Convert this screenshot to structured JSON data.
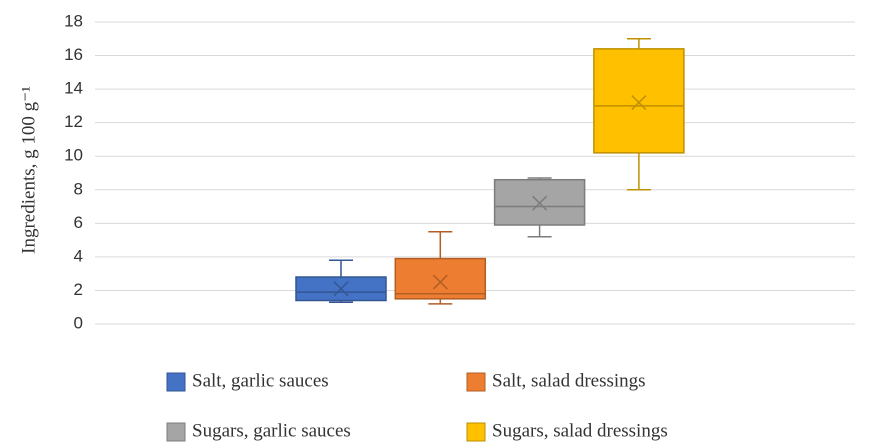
{
  "chart_data": {
    "type": "box",
    "y_label": "Ingredients, g 100 g⁻¹",
    "ylim": [
      0,
      18
    ],
    "yticks": [
      0,
      2,
      4,
      6,
      8,
      10,
      12,
      14,
      16,
      18
    ],
    "grid": true,
    "series": [
      {
        "name": "Salt, garlic sauces",
        "color": "#4472c4",
        "min": 1.3,
        "q1": 1.4,
        "median": 1.9,
        "q3": 2.8,
        "max": 3.8,
        "mean": 2.1
      },
      {
        "name": "Salt, salad dressings",
        "color": "#ed7d31",
        "min": 1.2,
        "q1": 1.5,
        "median": 1.8,
        "q3": 3.9,
        "max": 5.5,
        "mean": 2.5
      },
      {
        "name": "Sugars, garlic sauces",
        "color": "#a5a5a5",
        "min": 5.2,
        "q1": 5.9,
        "median": 7.0,
        "q3": 8.6,
        "max": 8.7,
        "mean": 7.2
      },
      {
        "name": "Sugars, salad dressings",
        "color": "#ffc000",
        "min": 8.0,
        "q1": 10.2,
        "median": 13.0,
        "q3": 16.4,
        "max": 17.0,
        "mean": 13.2
      }
    ]
  }
}
